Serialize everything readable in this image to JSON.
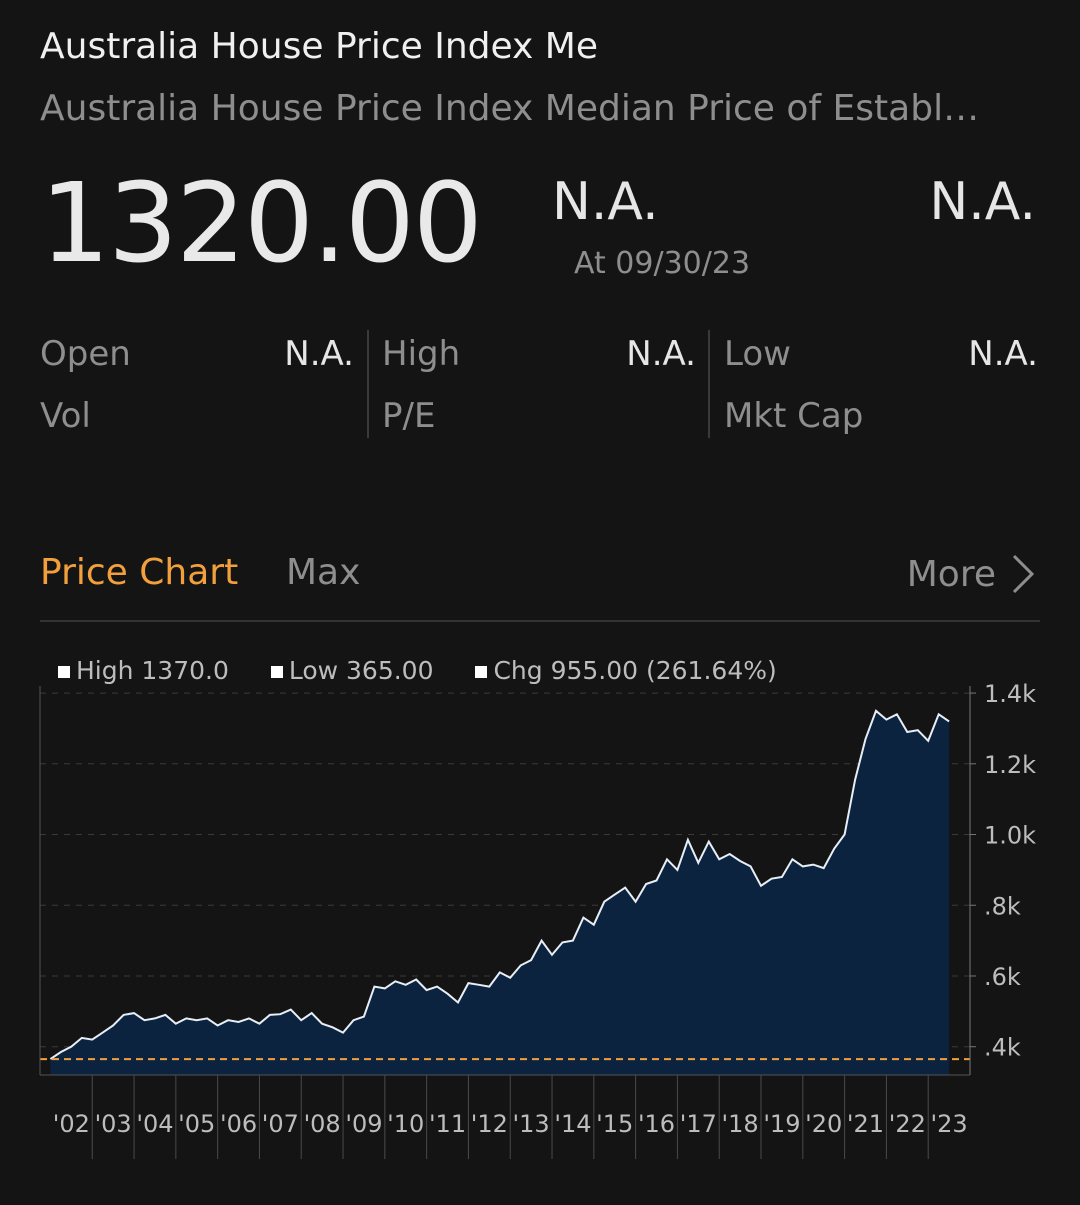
{
  "header": {
    "title": "Australia House Price Index Me",
    "subtitle": "Australia House Price Index Median Price of Establ…"
  },
  "quote": {
    "price": "1320.00",
    "change": "N.A.",
    "change_pct": "N.A.",
    "as_of": "At 09/30/23"
  },
  "stats": {
    "open_label": "Open",
    "open_value": "N.A.",
    "vol_label": "Vol",
    "high_label": "High",
    "high_value": "N.A.",
    "pe_label": "P/E",
    "low_label": "Low",
    "low_value": "N.A.",
    "mktcap_label": "Mkt Cap"
  },
  "tabs": {
    "active_label": "Price Chart",
    "range_label": "Max",
    "more_label": "More"
  },
  "legend": {
    "high": "High 1370.0",
    "low": "Low 365.00",
    "chg": "Chg 955.00 (261.64%)"
  },
  "colors": {
    "accent": "#f2a03c",
    "area_fill": "#0c2340",
    "line": "#e8eef5"
  },
  "chart_data": {
    "type": "area",
    "x_tick_labels": [
      "'02",
      "'03",
      "'04",
      "'05",
      "'06",
      "'07",
      "'08",
      "'09",
      "'10",
      "'11",
      "'12",
      "'13",
      "'14",
      "'15",
      "'16",
      "'17",
      "'18",
      "'19",
      "'20",
      "'21",
      "'22",
      "'23"
    ],
    "y_tick_labels": [
      ".4k",
      ".6k",
      ".8k",
      "1.0k",
      "1.2k",
      "1.4k"
    ],
    "y_ticks": [
      400,
      600,
      800,
      1000,
      1200,
      1400
    ],
    "ylim": [
      320,
      1420
    ],
    "xlim": [
      2001.75,
      2024.0
    ],
    "reference_line": 365,
    "grid": "dashed horizontal",
    "x": [
      2002.0,
      2002.25,
      2002.5,
      2002.75,
      2003.0,
      2003.25,
      2003.5,
      2003.75,
      2004.0,
      2004.25,
      2004.5,
      2004.75,
      2005.0,
      2005.25,
      2005.5,
      2005.75,
      2006.0,
      2006.25,
      2006.5,
      2006.75,
      2007.0,
      2007.25,
      2007.5,
      2007.75,
      2008.0,
      2008.25,
      2008.5,
      2008.75,
      2009.0,
      2009.25,
      2009.5,
      2009.75,
      2010.0,
      2010.25,
      2010.5,
      2010.75,
      2011.0,
      2011.25,
      2011.5,
      2011.75,
      2012.0,
      2012.25,
      2012.5,
      2012.75,
      2013.0,
      2013.25,
      2013.5,
      2013.75,
      2014.0,
      2014.25,
      2014.5,
      2014.75,
      2015.0,
      2015.25,
      2015.5,
      2015.75,
      2016.0,
      2016.25,
      2016.5,
      2016.75,
      2017.0,
      2017.25,
      2017.5,
      2017.75,
      2018.0,
      2018.25,
      2018.5,
      2018.75,
      2019.0,
      2019.25,
      2019.5,
      2019.75,
      2020.0,
      2020.25,
      2020.5,
      2020.75,
      2021.0,
      2021.25,
      2021.5,
      2021.75,
      2022.0,
      2022.25,
      2022.5,
      2022.75,
      2023.0,
      2023.25,
      2023.5
    ],
    "values": [
      365,
      385,
      400,
      425,
      420,
      440,
      460,
      490,
      495,
      475,
      480,
      490,
      465,
      480,
      475,
      480,
      460,
      475,
      470,
      480,
      465,
      490,
      492,
      505,
      475,
      495,
      465,
      455,
      440,
      475,
      485,
      570,
      565,
      585,
      575,
      590,
      560,
      570,
      550,
      525,
      580,
      575,
      570,
      610,
      595,
      630,
      645,
      700,
      660,
      695,
      700,
      765,
      745,
      810,
      830,
      850,
      810,
      860,
      870,
      930,
      900,
      985,
      920,
      980,
      930,
      945,
      925,
      910,
      855,
      875,
      880,
      930,
      910,
      915,
      905,
      960,
      1000,
      1155,
      1270,
      1350,
      1325,
      1340,
      1290,
      1295,
      1265,
      1340,
      1320
    ]
  }
}
